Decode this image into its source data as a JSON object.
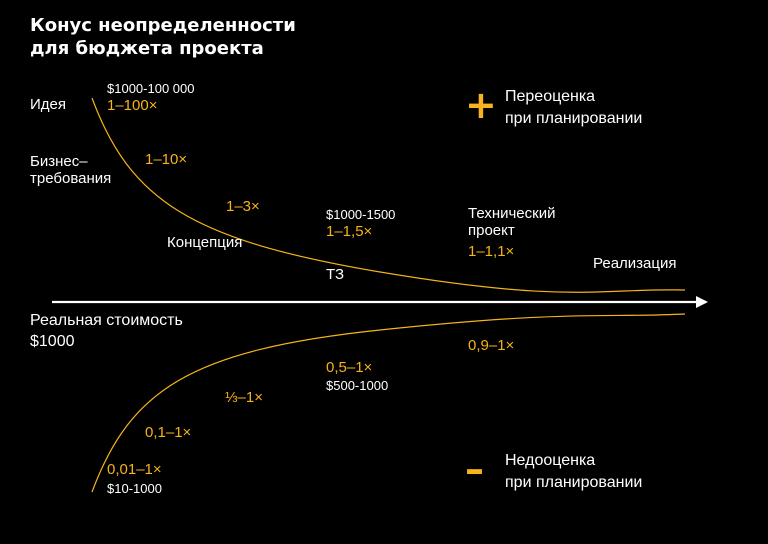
{
  "title_line1": "Конус неопределенности",
  "title_line2": "для бюджета проекта",
  "colors": {
    "accent": "#f6b31a",
    "background": "#000000",
    "text": "#ffffff"
  },
  "stages": {
    "idea": "Идея",
    "business_requirements": "Бизнес–\nтребования",
    "concept": "Концепция",
    "tz": "ТЗ",
    "technical_project": "Технический\nпроект",
    "realization": "Реализация"
  },
  "upper": {
    "idea_range": "$1000-100 000",
    "idea_factor": "1–100×",
    "business_factor": "1–10×",
    "concept_factor": "1–3×",
    "tz_range": "$1000-1500",
    "tz_factor": "1–1,5×",
    "tech_factor": "1–1,1×"
  },
  "lower": {
    "tech_factor": "0,9–1×",
    "tz_factor": "0,5–1×",
    "tz_range": "$500-1000",
    "concept_factor": "⅓–1×",
    "business_factor": "0,1–1×",
    "idea_factor": "0,01–1×",
    "idea_range": "$10-1000"
  },
  "real_cost_label": "Реальная стоимость",
  "real_cost_value": "$1000",
  "overestimate": {
    "sign": "+",
    "text": "Переоценка\nпри планировании"
  },
  "underestimate": {
    "sign": "–",
    "text": "Недооценка\nпри планировании"
  }
}
